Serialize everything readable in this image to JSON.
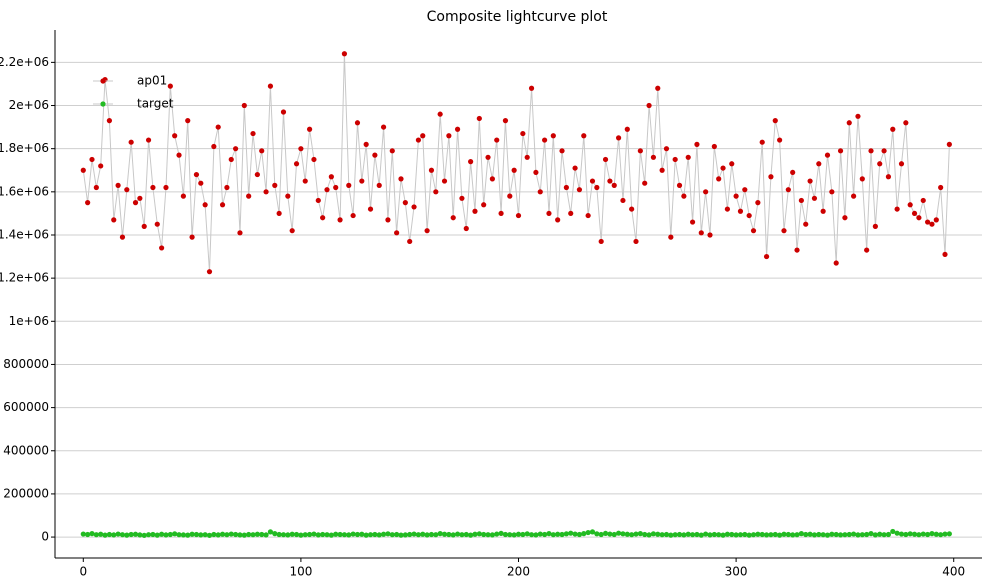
{
  "chart_data": {
    "type": "scatter",
    "title": "Composite lightcurve plot",
    "x": [
      0,
      2,
      4,
      6,
      8,
      10,
      12,
      14,
      16,
      18,
      20,
      22,
      24,
      26,
      28,
      30,
      32,
      34,
      36,
      38,
      40,
      42,
      44,
      46,
      48,
      50,
      52,
      54,
      56,
      58,
      60,
      62,
      64,
      66,
      68,
      70,
      72,
      74,
      76,
      78,
      80,
      82,
      84,
      86,
      88,
      90,
      92,
      94,
      96,
      98,
      100,
      102,
      104,
      106,
      108,
      110,
      112,
      114,
      116,
      118,
      120,
      122,
      124,
      126,
      128,
      130,
      132,
      134,
      136,
      138,
      140,
      142,
      144,
      146,
      148,
      150,
      152,
      154,
      156,
      158,
      160,
      162,
      164,
      166,
      168,
      170,
      172,
      174,
      176,
      178,
      180,
      182,
      184,
      186,
      188,
      190,
      192,
      194,
      196,
      198,
      200,
      202,
      204,
      206,
      208,
      210,
      212,
      214,
      216,
      218,
      220,
      222,
      224,
      226,
      228,
      230,
      232,
      234,
      236,
      238,
      240,
      242,
      244,
      246,
      248,
      250,
      252,
      254,
      256,
      258,
      260,
      262,
      264,
      266,
      268,
      270,
      272,
      274,
      276,
      278,
      280,
      282,
      284,
      286,
      288,
      290,
      292,
      294,
      296,
      298,
      300,
      302,
      304,
      306,
      308,
      310,
      312,
      314,
      316,
      318,
      320,
      322,
      324,
      326,
      328,
      330,
      332,
      334,
      336,
      338,
      340,
      342,
      344,
      346,
      348,
      350,
      352,
      354,
      356,
      358,
      360,
      362,
      364,
      366,
      368,
      370,
      372,
      374,
      376,
      378,
      380,
      382,
      384,
      386,
      388,
      390,
      392,
      394,
      396,
      398
    ],
    "series": [
      {
        "name": "ap01",
        "color": "#cc0000",
        "values": [
          1700000,
          1550000,
          1750000,
          1620000,
          1720000,
          2120000,
          1930000,
          1470000,
          1630000,
          1390000,
          1610000,
          1830000,
          1550000,
          1570000,
          1440000,
          1840000,
          1620000,
          1450000,
          1340000,
          1620000,
          2090000,
          1860000,
          1770000,
          1580000,
          1930000,
          1390000,
          1680000,
          1640000,
          1540000,
          1230000,
          1810000,
          1900000,
          1540000,
          1620000,
          1750000,
          1800000,
          1410000,
          2000000,
          1580000,
          1870000,
          1680000,
          1790000,
          1600000,
          2090000,
          1630000,
          1500000,
          1970000,
          1580000,
          1420000,
          1730000,
          1800000,
          1650000,
          1890000,
          1750000,
          1560000,
          1480000,
          1610000,
          1670000,
          1620000,
          1470000,
          2240000,
          1630000,
          1490000,
          1920000,
          1650000,
          1820000,
          1520000,
          1770000,
          1630000,
          1900000,
          1470000,
          1790000,
          1410000,
          1660000,
          1550000,
          1370000,
          1530000,
          1840000,
          1860000,
          1420000,
          1700000,
          1600000,
          1960000,
          1650000,
          1860000,
          1480000,
          1890000,
          1570000,
          1430000,
          1740000,
          1510000,
          1940000,
          1540000,
          1760000,
          1660000,
          1840000,
          1500000,
          1930000,
          1580000,
          1700000,
          1490000,
          1870000,
          1760000,
          2080000,
          1690000,
          1600000,
          1840000,
          1500000,
          1860000,
          1470000,
          1790000,
          1620000,
          1500000,
          1710000,
          1610000,
          1860000,
          1490000,
          1650000,
          1620000,
          1370000,
          1750000,
          1650000,
          1630000,
          1850000,
          1560000,
          1890000,
          1520000,
          1370000,
          1790000,
          1640000,
          2000000,
          1760000,
          2080000,
          1700000,
          1800000,
          1390000,
          1750000,
          1630000,
          1580000,
          1760000,
          1460000,
          1820000,
          1410000,
          1600000,
          1400000,
          1810000,
          1660000,
          1710000,
          1520000,
          1730000,
          1580000,
          1510000,
          1610000,
          1490000,
          1420000,
          1550000,
          1830000,
          1300000,
          1670000,
          1930000,
          1840000,
          1420000,
          1610000,
          1690000,
          1330000,
          1560000,
          1450000,
          1650000,
          1570000,
          1730000,
          1510000,
          1770000,
          1600000,
          1270000,
          1790000,
          1480000,
          1920000,
          1580000,
          1950000,
          1660000,
          1330000,
          1790000,
          1440000,
          1730000,
          1790000,
          1670000,
          1890000,
          1520000,
          1730000,
          1920000,
          1540000,
          1500000,
          1480000,
          1560000,
          1460000,
          1450000,
          1470000,
          1620000,
          1310000,
          1820000
        ]
      },
      {
        "name": "target",
        "color": "#22bb22",
        "values": [
          14000,
          12000,
          16000,
          11000,
          13000,
          9000,
          12000,
          10000,
          14000,
          11000,
          9000,
          12000,
          13000,
          10000,
          8000,
          11000,
          12000,
          9000,
          13000,
          10000,
          12000,
          15000,
          11000,
          10000,
          9000,
          13000,
          12000,
          10000,
          11000,
          8000,
          12000,
          10000,
          13000,
          11000,
          14000,
          12000,
          10000,
          9000,
          12000,
          11000,
          13000,
          12000,
          10000,
          24000,
          16000,
          12000,
          11000,
          10000,
          13000,
          12000,
          9000,
          11000,
          12000,
          14000,
          10000,
          12000,
          11000,
          9000,
          13000,
          12000,
          11000,
          10000,
          14000,
          12000,
          13000,
          9000,
          11000,
          12000,
          10000,
          13000,
          15000,
          11000,
          12000,
          9000,
          10000,
          12000,
          14000,
          11000,
          13000,
          10000,
          12000,
          11000,
          16000,
          13000,
          12000,
          10000,
          14000,
          11000,
          12000,
          9000,
          13000,
          15000,
          12000,
          11000,
          10000,
          14000,
          17000,
          12000,
          11000,
          10000,
          13000,
          12000,
          15000,
          11000,
          10000,
          14000,
          12000,
          16000,
          11000,
          13000,
          12000,
          15000,
          18000,
          14000,
          12000,
          16000,
          21000,
          24000,
          15000,
          12000,
          17000,
          14000,
          12000,
          18000,
          15000,
          13000,
          11000,
          14000,
          16000,
          12000,
          10000,
          15000,
          13000,
          11000,
          12000,
          9000,
          11000,
          12000,
          10000,
          13000,
          11000,
          12000,
          9000,
          14000,
          10000,
          12000,
          11000,
          9000,
          13000,
          12000,
          10000,
          11000,
          12000,
          9000,
          11000,
          13000,
          12000,
          10000,
          11000,
          12000,
          9000,
          13000,
          12000,
          10000,
          11000,
          16000,
          12000,
          13000,
          10000,
          12000,
          11000,
          9000,
          13000,
          12000,
          10000,
          11000,
          12000,
          14000,
          10000,
          11000,
          12000,
          16000,
          10000,
          13000,
          11000,
          12000,
          26000,
          18000,
          14000,
          12000,
          15000,
          13000,
          11000,
          14000,
          12000,
          16000,
          13000,
          11000,
          14000,
          15000
        ]
      }
    ],
    "xlim": [
      -13,
      413
    ],
    "ylim": [
      -97000,
      2350000
    ],
    "xticks": [
      0,
      100,
      200,
      300,
      400
    ],
    "yticks": [
      0,
      200000,
      400000,
      600000,
      800000,
      {
        "value": 1000000,
        "label": "1e+06"
      },
      {
        "value": 1200000,
        "label": "1.2e+06"
      },
      {
        "value": 1400000,
        "label": "1.4e+06"
      },
      {
        "value": 1600000,
        "label": "1.6e+06"
      },
      {
        "value": 1800000,
        "label": "1.8e+06"
      },
      {
        "value": 2000000,
        "label": "2e+06"
      },
      {
        "value": 2200000,
        "label": "2.2e+06"
      }
    ],
    "grid": true,
    "legend": "upper left"
  }
}
